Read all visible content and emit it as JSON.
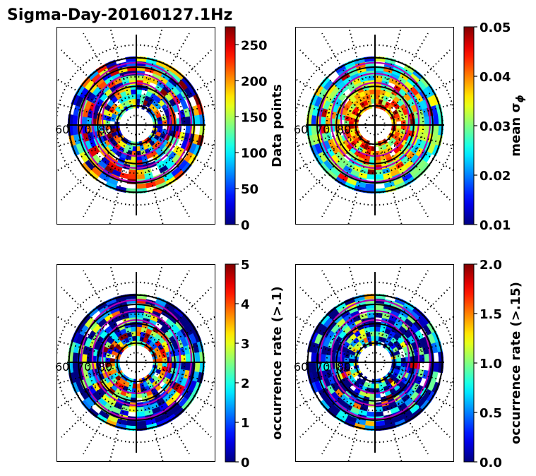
{
  "figure": {
    "title": "Sigma-Day-20160127.1Hz"
  },
  "chart_data": [
    {
      "type": "heatmap",
      "projection": "polar",
      "colormap": "jet",
      "colorbar": {
        "label": "Data points",
        "range": [
          0,
          275
        ],
        "ticks": [
          "0",
          "50",
          "100",
          "150",
          "200",
          "250"
        ],
        "tick_values": [
          0,
          50,
          100,
          150,
          200,
          250
        ]
      },
      "latitude_labels": [
        "60",
        "70",
        "80"
      ],
      "field": {
        "inner_mean": 0.35,
        "outer_mean": 0.45,
        "spread": 0.5
      }
    },
    {
      "type": "heatmap",
      "projection": "polar",
      "colormap": "jet",
      "colorbar": {
        "label": "mean σϕ",
        "label_main": "mean σ",
        "label_sub": "ϕ",
        "range": [
          0.01,
          0.05
        ],
        "ticks": [
          "0.01",
          "0.02",
          "0.03",
          "0.04",
          "0.05"
        ],
        "tick_values": [
          0.01,
          0.02,
          0.03,
          0.04,
          0.05
        ]
      },
      "latitude_labels": [
        "60",
        "70",
        "80"
      ],
      "field": {
        "inner_mean": 0.75,
        "outer_mean": 0.35,
        "spread": 0.25
      }
    },
    {
      "type": "heatmap",
      "projection": "polar",
      "colormap": "jet",
      "colorbar": {
        "label": "occurrence rate (>.1)",
        "range": [
          0,
          5
        ],
        "ticks": [
          "0",
          "1",
          "2",
          "3",
          "4",
          "5"
        ],
        "tick_values": [
          0,
          1,
          2,
          3,
          4,
          5
        ]
      },
      "latitude_labels": [
        "60",
        "70",
        "80"
      ],
      "field": {
        "inner_mean": 0.5,
        "outer_mean": 0.05,
        "spread": 0.5
      }
    },
    {
      "type": "heatmap",
      "projection": "polar",
      "colormap": "jet",
      "colorbar": {
        "label": "occurrence rate (>.15)",
        "range": [
          0,
          2
        ],
        "ticks": [
          "0.0",
          "0.5",
          "1.0",
          "1.5",
          "2.0"
        ],
        "tick_values": [
          0,
          0.5,
          1,
          1.5,
          2
        ]
      },
      "latitude_labels": [
        "60",
        "70",
        "80"
      ],
      "field": {
        "inner_mean": 0.25,
        "outer_mean": 0.03,
        "spread": 0.45
      }
    }
  ],
  "colors": {
    "contour": "#b400b4",
    "axis": "#000000"
  }
}
